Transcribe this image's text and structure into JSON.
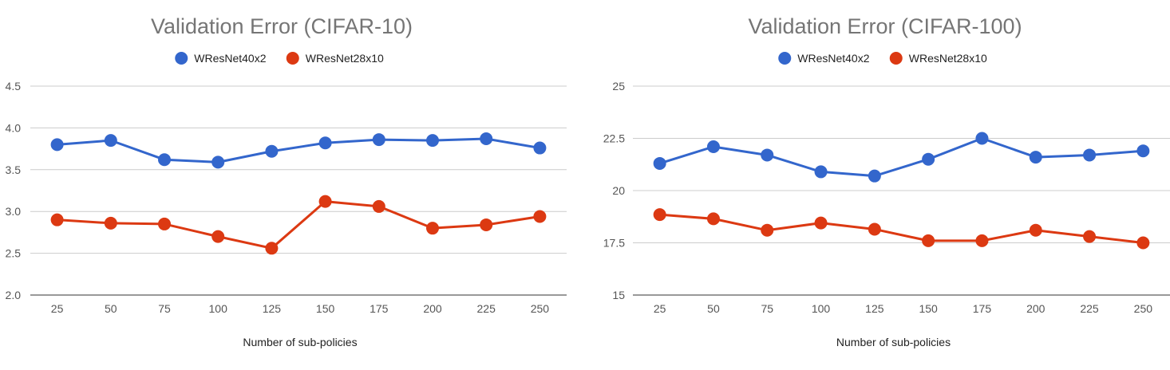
{
  "chart_data": [
    {
      "type": "line",
      "title": "Validation Error (CIFAR-10)",
      "xlabel": "Number of sub-policies",
      "ylabel": "",
      "categories": [
        "25",
        "50",
        "75",
        "100",
        "125",
        "150",
        "175",
        "200",
        "225",
        "250"
      ],
      "yticks": [
        "2.0",
        "2.5",
        "3.0",
        "3.5",
        "4.0",
        "4.5"
      ],
      "ylim": [
        2.0,
        4.5
      ],
      "legend_position": "top",
      "grid": true,
      "series": [
        {
          "name": "WResNet40x2",
          "color": "#3366cc",
          "values": [
            3.8,
            3.85,
            3.62,
            3.59,
            3.72,
            3.82,
            3.86,
            3.85,
            3.87,
            3.76
          ]
        },
        {
          "name": "WResNet28x10",
          "color": "#dc3912",
          "values": [
            2.9,
            2.86,
            2.85,
            2.7,
            2.56,
            3.12,
            3.06,
            2.8,
            2.84,
            2.94
          ]
        }
      ]
    },
    {
      "type": "line",
      "title": "Validation Error (CIFAR-100)",
      "xlabel": "Number of sub-policies",
      "ylabel": "",
      "categories": [
        "25",
        "50",
        "75",
        "100",
        "125",
        "150",
        "175",
        "200",
        "225",
        "250"
      ],
      "yticks": [
        "15",
        "17.5",
        "20",
        "22.5",
        "25"
      ],
      "ylim": [
        15,
        25
      ],
      "legend_position": "top",
      "grid": true,
      "series": [
        {
          "name": "WResNet40x2",
          "color": "#3366cc",
          "values": [
            21.3,
            22.1,
            21.7,
            20.9,
            20.7,
            21.5,
            22.5,
            21.6,
            21.7,
            21.9
          ]
        },
        {
          "name": "WResNet28x10",
          "color": "#dc3912",
          "values": [
            18.85,
            18.65,
            18.1,
            18.45,
            18.15,
            17.6,
            17.6,
            18.1,
            17.8,
            17.5
          ]
        }
      ]
    }
  ]
}
